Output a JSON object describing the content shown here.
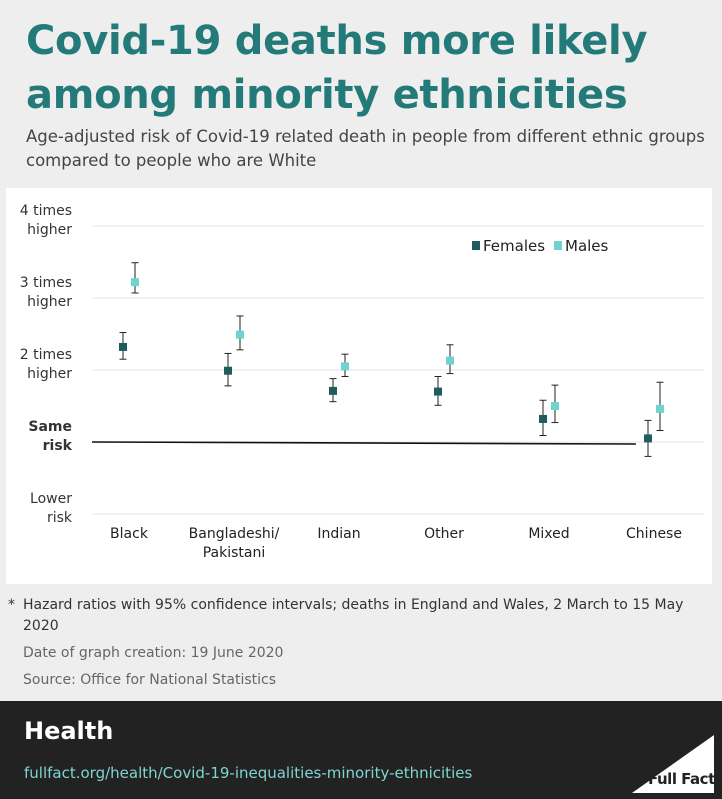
{
  "header": {
    "title": "Covid-19 deaths more likely among minority ethnicities",
    "subtitle": "Age-adjusted risk of Covid-19 related death in people from different ethnic groups compared to people who are White"
  },
  "chart_data": {
    "type": "scatter",
    "categories": [
      "Black",
      "Bangladeshi/\nPakistani",
      "Indian",
      "Other",
      "Mixed",
      "Chinese"
    ],
    "category_labels": [
      [
        "Black"
      ],
      [
        "Bangladeshi/",
        "Pakistani"
      ],
      [
        "Indian"
      ],
      [
        "Other"
      ],
      [
        "Mixed"
      ],
      [
        "Chinese"
      ]
    ],
    "y_ticks": [
      {
        "value": 4,
        "lines": [
          "4 times",
          "higher"
        ],
        "bold": false
      },
      {
        "value": 3,
        "lines": [
          "3 times",
          "higher"
        ],
        "bold": false
      },
      {
        "value": 2,
        "lines": [
          "2 times",
          "higher"
        ],
        "bold": false
      },
      {
        "value": 1,
        "lines": [
          "Same",
          "risk"
        ],
        "bold": true
      },
      {
        "value": 0,
        "lines": [
          "Lower",
          "risk"
        ],
        "bold": false
      }
    ],
    "ylim": [
      0,
      4
    ],
    "grid": true,
    "legend_position": "top-right",
    "series": [
      {
        "name": "Females",
        "color": "#1e5c5e",
        "values": [
          2.32,
          1.99,
          1.71,
          1.7,
          1.32,
          1.05
        ],
        "lower": [
          2.15,
          1.78,
          1.56,
          1.51,
          1.09,
          0.8
        ],
        "upper": [
          2.52,
          2.23,
          1.88,
          1.91,
          1.58,
          1.3
        ]
      },
      {
        "name": "Males",
        "color": "#6fd3d0",
        "values": [
          3.22,
          2.49,
          2.05,
          2.13,
          1.5,
          1.46
        ],
        "lower": [
          3.07,
          2.28,
          1.91,
          1.95,
          1.27,
          1.16
        ],
        "upper": [
          3.49,
          2.75,
          2.22,
          2.35,
          1.79,
          1.83
        ]
      }
    ],
    "reference_line": {
      "value": 1
    }
  },
  "notes": {
    "star": "*",
    "footnote": "Hazard ratios with 95% confidence intervals; deaths in England and Wales, 2 March to 15 May 2020",
    "created": "Date of graph creation: 19 June 2020",
    "source": "Source: Office for National Statistics"
  },
  "footer": {
    "section": "Health",
    "url": "fullfact.org/health/Covid-19-inequalities-minority-ethnicities",
    "logo_text": "Full Fact"
  }
}
